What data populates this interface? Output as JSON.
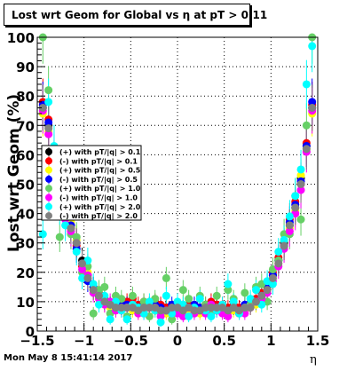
{
  "title": "Lost wrt Geom for Global vs   η at pT > 0.11",
  "footer": "Mon May  8 15:41:14 2017",
  "chart_data": {
    "type": "scatter",
    "title": "Lost wrt Geom for Global vs   η at pT > 0.11",
    "xlabel": "η",
    "ylabel": "Lost wrt Geom (%)",
    "xlim": [
      -1.5,
      1.5
    ],
    "ylim": [
      0,
      100
    ],
    "x_ticks": [
      -1.5,
      -1,
      -0.5,
      0,
      0.5,
      1,
      1.5
    ],
    "x_tick_labels": [
      "−1.5",
      "−1",
      "−0.5",
      "0",
      "0.5",
      "1",
      "1.5"
    ],
    "y_ticks": [
      0,
      10,
      20,
      30,
      40,
      50,
      60,
      70,
      80,
      90,
      100
    ],
    "y_tick_labels": [
      "0",
      "10",
      "20",
      "30",
      "40",
      "50",
      "60",
      "70",
      "80",
      "90",
      "100"
    ],
    "grid": true,
    "legend_position": "left-middle",
    "series": [
      {
        "name": "(+) with pT/|q| > 0.1",
        "color": "#000000",
        "marker": "circle",
        "x": [
          -1.44,
          -1.38,
          -1.32,
          -1.26,
          -1.2,
          -1.14,
          -1.08,
          -1.02,
          -0.96,
          -0.9,
          -0.84,
          -0.78,
          -0.72,
          -0.66,
          -0.6,
          -0.54,
          -0.48,
          -0.42,
          -0.36,
          -0.3,
          -0.24,
          -0.18,
          -0.12,
          -0.06,
          0.0,
          0.06,
          0.12,
          0.18,
          0.24,
          0.3,
          0.36,
          0.42,
          0.48,
          0.54,
          0.6,
          0.66,
          0.72,
          0.78,
          0.84,
          0.9,
          0.96,
          1.02,
          1.08,
          1.14,
          1.2,
          1.26,
          1.32,
          1.38,
          1.44
        ],
        "y": [
          76,
          70,
          58,
          48,
          42,
          36,
          30,
          24,
          19,
          15,
          12,
          10,
          9,
          8,
          8,
          9,
          8,
          7,
          8,
          9,
          8,
          7,
          8,
          8,
          9,
          7,
          8,
          8,
          7,
          8,
          8,
          9,
          8,
          7,
          8,
          7,
          8,
          9,
          10,
          12,
          15,
          19,
          24,
          30,
          36,
          42,
          52,
          63,
          76
        ]
      },
      {
        "name": "(-) with pT/|q| > 0.1",
        "color": "#ff0000",
        "marker": "circle",
        "x": [
          -1.44,
          -1.38,
          -1.32,
          -1.26,
          -1.2,
          -1.14,
          -1.08,
          -1.02,
          -0.96,
          -0.9,
          -0.84,
          -0.78,
          -0.72,
          -0.66,
          -0.6,
          -0.54,
          -0.48,
          -0.42,
          -0.36,
          -0.3,
          -0.24,
          -0.18,
          -0.12,
          -0.06,
          0.0,
          0.06,
          0.12,
          0.18,
          0.24,
          0.3,
          0.36,
          0.42,
          0.48,
          0.54,
          0.6,
          0.66,
          0.72,
          0.78,
          0.84,
          0.9,
          0.96,
          1.02,
          1.08,
          1.14,
          1.2,
          1.26,
          1.32,
          1.38,
          1.44
        ],
        "y": [
          78,
          72,
          56,
          46,
          43,
          35,
          29,
          22,
          18,
          14,
          13,
          11,
          9,
          9,
          8,
          10,
          11,
          9,
          10,
          9,
          10,
          9,
          8,
          8,
          9,
          8,
          9,
          9,
          8,
          9,
          10,
          9,
          9,
          8,
          9,
          8,
          7,
          9,
          11,
          13,
          14,
          20,
          25,
          29,
          38,
          44,
          50,
          64,
          77
        ]
      },
      {
        "name": "(+) with pT/|q| > 0.5",
        "color": "#ffff00",
        "marker": "circle",
        "x": [
          -1.44,
          -1.38,
          -1.32,
          -1.26,
          -1.2,
          -1.14,
          -1.08,
          -1.02,
          -0.96,
          -0.9,
          -0.84,
          -0.78,
          -0.72,
          -0.66,
          -0.6,
          -0.54,
          -0.48,
          -0.42,
          -0.36,
          -0.3,
          -0.24,
          -0.18,
          -0.12,
          -0.06,
          0.0,
          0.06,
          0.12,
          0.18,
          0.24,
          0.3,
          0.36,
          0.42,
          0.48,
          0.54,
          0.6,
          0.66,
          0.72,
          0.78,
          0.84,
          0.9,
          0.96,
          1.02,
          1.08,
          1.14,
          1.2,
          1.26,
          1.32,
          1.38,
          1.44
        ],
        "y": [
          74,
          68,
          56,
          49,
          40,
          37,
          31,
          23,
          20,
          14,
          11,
          9,
          8,
          7,
          8,
          8,
          7,
          6,
          7,
          8,
          7,
          6,
          6,
          7,
          8,
          6,
          7,
          7,
          6,
          7,
          7,
          8,
          7,
          6,
          7,
          6,
          7,
          8,
          9,
          11,
          14,
          18,
          23,
          31,
          35,
          41,
          53,
          62,
          74
        ]
      },
      {
        "name": "(-) with pT/|q| > 0.5",
        "color": "#0000ff",
        "marker": "circle",
        "x": [
          -1.44,
          -1.38,
          -1.32,
          -1.26,
          -1.2,
          -1.14,
          -1.08,
          -1.02,
          -0.96,
          -0.9,
          -0.84,
          -0.78,
          -0.72,
          -0.66,
          -0.6,
          -0.54,
          -0.48,
          -0.42,
          -0.36,
          -0.3,
          -0.24,
          -0.18,
          -0.12,
          -0.06,
          0.0,
          0.06,
          0.12,
          0.18,
          0.24,
          0.3,
          0.36,
          0.42,
          0.48,
          0.54,
          0.6,
          0.66,
          0.72,
          0.78,
          0.84,
          0.9,
          0.96,
          1.02,
          1.08,
          1.14,
          1.2,
          1.26,
          1.32,
          1.38,
          1.44
        ],
        "y": [
          77,
          71,
          57,
          47,
          44,
          36,
          28,
          23,
          17,
          15,
          12,
          10,
          9,
          8,
          9,
          9,
          8,
          8,
          9,
          8,
          9,
          8,
          7,
          9,
          8,
          8,
          8,
          9,
          8,
          8,
          9,
          8,
          8,
          7,
          8,
          7,
          9,
          9,
          10,
          12,
          16,
          19,
          24,
          29,
          37,
          43,
          51,
          63,
          78
        ]
      },
      {
        "name": "(+) with pT/|q| > 1.0",
        "color": "#66d066",
        "marker": "circle",
        "x": [
          -1.44,
          -1.38,
          -1.32,
          -1.26,
          -1.2,
          -1.14,
          -1.08,
          -1.02,
          -0.96,
          -0.9,
          -0.84,
          -0.78,
          -0.72,
          -0.66,
          -0.6,
          -0.54,
          -0.48,
          -0.42,
          -0.36,
          -0.3,
          -0.24,
          -0.18,
          -0.12,
          -0.06,
          0.0,
          0.06,
          0.12,
          0.18,
          0.24,
          0.3,
          0.36,
          0.42,
          0.48,
          0.54,
          0.6,
          0.66,
          0.72,
          0.78,
          0.84,
          0.9,
          0.96,
          1.02,
          1.08,
          1.14,
          1.2,
          1.26,
          1.32,
          1.38,
          1.44
        ],
        "y": [
          100,
          82,
          49,
          32,
          40,
          33,
          32,
          20,
          22,
          6,
          14,
          15,
          6,
          12,
          11,
          5,
          12,
          7,
          10,
          5,
          11,
          6,
          18,
          4,
          7,
          14,
          11,
          6,
          12,
          9,
          6,
          12,
          8,
          14,
          11,
          6,
          13,
          9,
          15,
          16,
          10,
          21,
          24,
          33,
          33,
          46,
          38,
          70,
          100
        ]
      },
      {
        "name": "(-) with pT/|q| > 1.0",
        "color": "#ff00ff",
        "marker": "circle",
        "x": [
          -1.44,
          -1.38,
          -1.32,
          -1.26,
          -1.2,
          -1.14,
          -1.08,
          -1.02,
          -0.96,
          -0.9,
          -0.84,
          -0.78,
          -0.72,
          -0.66,
          -0.6,
          -0.54,
          -0.48,
          -0.42,
          -0.36,
          -0.3,
          -0.24,
          -0.18,
          -0.12,
          -0.06,
          0.0,
          0.06,
          0.12,
          0.18,
          0.24,
          0.3,
          0.36,
          0.42,
          0.48,
          0.54,
          0.6,
          0.66,
          0.72,
          0.78,
          0.84,
          0.9,
          0.96,
          1.02,
          1.08,
          1.14,
          1.2,
          1.26,
          1.32,
          1.38,
          1.44
        ],
        "y": [
          75,
          67,
          60,
          45,
          38,
          34,
          30,
          21,
          19,
          13,
          11,
          9,
          10,
          7,
          7,
          8,
          9,
          6,
          6,
          8,
          8,
          5,
          7,
          7,
          6,
          5,
          8,
          6,
          7,
          6,
          9,
          7,
          6,
          5,
          8,
          6,
          6,
          8,
          10,
          11,
          13,
          17,
          22,
          28,
          34,
          40,
          48,
          61,
          75
        ]
      },
      {
        "name": "(+) with pT/|q| > 2.0",
        "color": "#00ffff",
        "marker": "circle",
        "x": [
          -1.44,
          -1.38,
          -1.32,
          -1.26,
          -1.2,
          -1.14,
          -1.08,
          -1.02,
          -0.96,
          -0.9,
          -0.84,
          -0.78,
          -0.72,
          -0.66,
          -0.6,
          -0.54,
          -0.48,
          -0.42,
          -0.36,
          -0.3,
          -0.24,
          -0.18,
          -0.12,
          -0.06,
          0.0,
          0.06,
          0.12,
          0.18,
          0.24,
          0.3,
          0.36,
          0.42,
          0.48,
          0.54,
          0.6,
          0.66,
          0.72,
          0.78,
          0.84,
          0.9,
          0.96,
          1.02,
          1.08,
          1.14,
          1.2,
          1.26,
          1.32,
          1.38,
          1.44
        ],
        "y": [
          33,
          78,
          63,
          42,
          36,
          43,
          27,
          18,
          24,
          16,
          9,
          12,
          4,
          10,
          7,
          4,
          9,
          8,
          6,
          10,
          7,
          3,
          12,
          6,
          10,
          9,
          5,
          8,
          11,
          7,
          5,
          7,
          9,
          16,
          10,
          6,
          8,
          11,
          14,
          9,
          17,
          16,
          27,
          31,
          39,
          46,
          55,
          84,
          97
        ]
      },
      {
        "name": "(-) with pT/|q| > 2.0",
        "color": "#808080",
        "marker": "circle",
        "x": [
          -1.44,
          -1.38,
          -1.32,
          -1.26,
          -1.2,
          -1.14,
          -1.08,
          -1.02,
          -0.96,
          -0.9,
          -0.84,
          -0.78,
          -0.72,
          -0.66,
          -0.6,
          -0.54,
          -0.48,
          -0.42,
          -0.36,
          -0.3,
          -0.24,
          -0.18,
          -0.12,
          -0.06,
          0.0,
          0.06,
          0.12,
          0.18,
          0.24,
          0.3,
          0.36,
          0.42,
          0.48,
          0.54,
          0.6,
          0.66,
          0.72,
          0.78,
          0.84,
          0.9,
          0.96,
          1.02,
          1.08,
          1.14,
          1.2,
          1.26,
          1.32,
          1.38,
          1.44
        ],
        "y": [
          76,
          69,
          55,
          47,
          41,
          35,
          30,
          23,
          18,
          14,
          12,
          10,
          9,
          8,
          8,
          8,
          8,
          7,
          8,
          8,
          8,
          7,
          7,
          8,
          8,
          7,
          8,
          7,
          7,
          8,
          8,
          8,
          8,
          7,
          8,
          7,
          8,
          8,
          10,
          12,
          14,
          18,
          23,
          29,
          36,
          42,
          50,
          62,
          76
        ]
      }
    ]
  }
}
